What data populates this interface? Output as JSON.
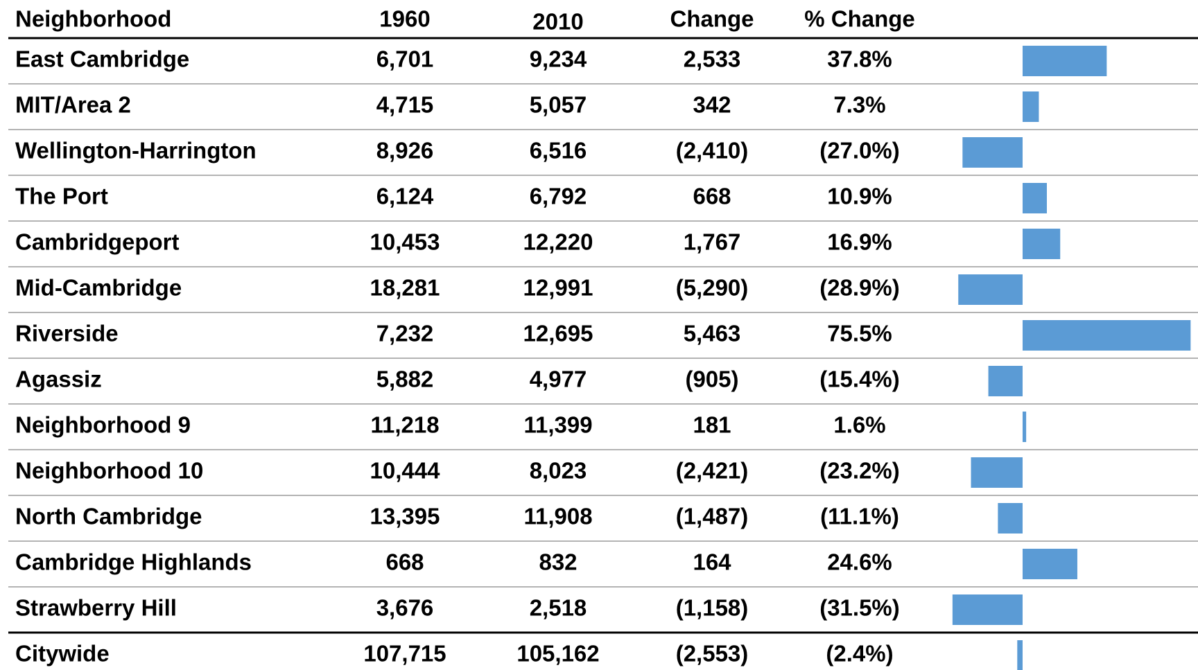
{
  "table": {
    "columns": [
      "Neighborhood",
      "1960",
      "2010",
      "Change",
      "% Change"
    ],
    "rows": [
      [
        "East Cambridge",
        "6,701",
        "9,234",
        "2,533",
        "37.8%"
      ],
      [
        "MIT/Area 2",
        "4,715",
        "5,057",
        "342",
        "7.3%"
      ],
      [
        "Wellington-Harrington",
        "8,926",
        "6,516",
        "(2,410)",
        "(27.0%)"
      ],
      [
        "The Port",
        "6,124",
        "6,792",
        "668",
        "10.9%"
      ],
      [
        "Cambridgeport",
        "10,453",
        "12,220",
        "1,767",
        "16.9%"
      ],
      [
        "Mid-Cambridge",
        "18,281",
        "12,991",
        "(5,290)",
        "(28.9%)"
      ],
      [
        "Riverside",
        "7,232",
        "12,695",
        "5,463",
        "75.5%"
      ],
      [
        "Agassiz",
        "5,882",
        "4,977",
        "(905)",
        "(15.4%)"
      ],
      [
        "Neighborhood 9",
        "11,218",
        "11,399",
        "181",
        "1.6%"
      ],
      [
        "Neighborhood 10",
        "10,444",
        "8,023",
        "(2,421)",
        "(23.2%)"
      ],
      [
        "North Cambridge",
        "13,395",
        "11,908",
        "(1,487)",
        "(11.1%)"
      ],
      [
        "Cambridge Highlands",
        "668",
        "832",
        "164",
        "24.6%"
      ],
      [
        "Strawberry Hill",
        "3,676",
        "2,518",
        "(1,158)",
        "(31.5%)"
      ],
      [
        "Citywide",
        "107,715",
        "105,162",
        "(2,553)",
        "(2.4%)"
      ]
    ]
  },
  "bars": {
    "color": "#5b9bd5",
    "values": [
      37.8,
      7.3,
      -27.0,
      10.9,
      16.9,
      -28.9,
      75.5,
      -15.4,
      1.6,
      -23.2,
      -11.1,
      24.6,
      -31.5,
      -2.4
    ]
  }
}
